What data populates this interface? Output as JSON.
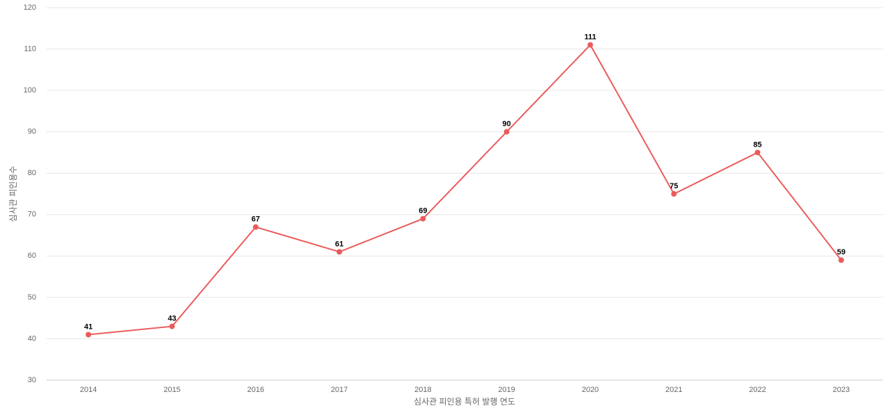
{
  "chart_data": {
    "type": "line",
    "x_label": "심사관 피인용 특허 발행 연도",
    "y_label": "심사관 피인용수",
    "categories": [
      "2014",
      "2015",
      "2016",
      "2017",
      "2018",
      "2019",
      "2020",
      "2021",
      "2022",
      "2023"
    ],
    "series": [
      {
        "name": "심사관 피인용수",
        "color": "#eb5b5b",
        "values": [
          41,
          43,
          67,
          61,
          69,
          90,
          111,
          75,
          85,
          59
        ]
      }
    ],
    "ylim": [
      30,
      120
    ],
    "yticks": [
      30,
      40,
      50,
      60,
      70,
      80,
      90,
      100,
      110,
      120
    ],
    "grid": true
  }
}
